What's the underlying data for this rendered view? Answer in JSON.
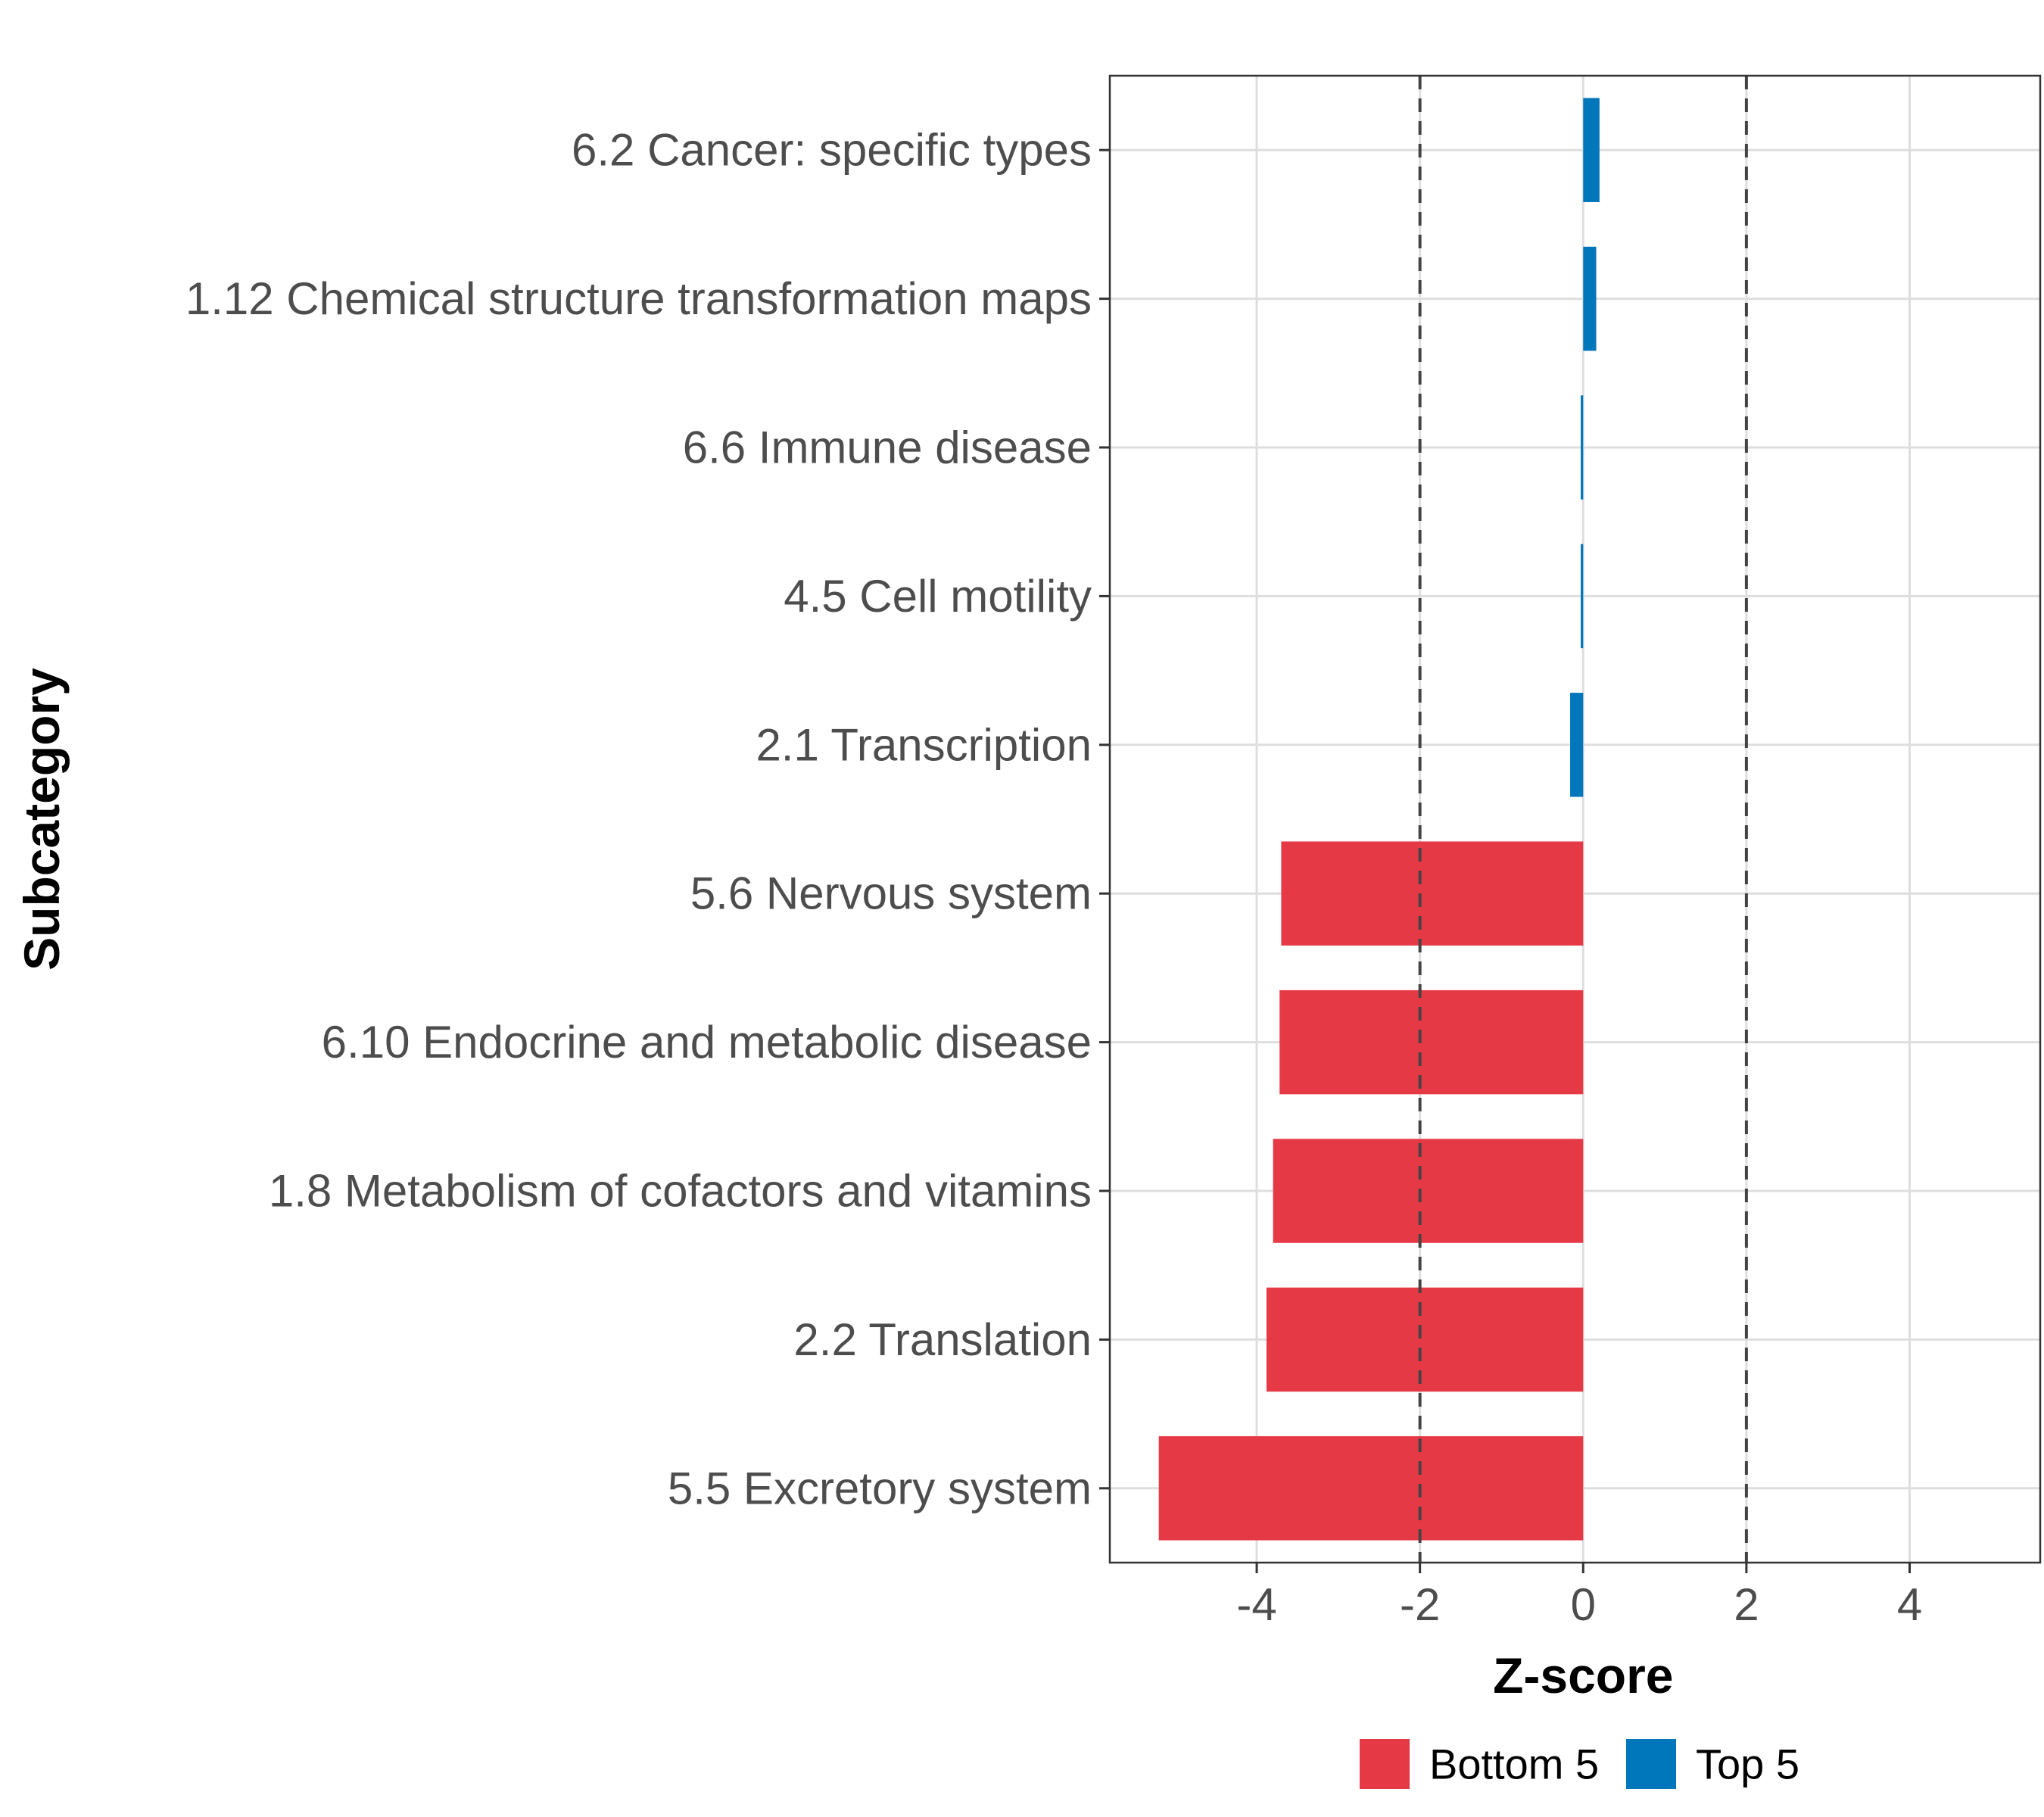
{
  "chart_data": {
    "type": "bar",
    "orientation": "horizontal",
    "title": "",
    "xlabel": "Z-score",
    "ylabel": "Subcategory",
    "xlim": [
      -5.8,
      5.6
    ],
    "xticks": [
      -4,
      -2,
      0,
      2,
      4
    ],
    "xtick_labels": [
      "-4",
      "-2",
      "0",
      "2",
      "4"
    ],
    "reference_lines": [
      -2,
      2
    ],
    "grid": true,
    "legend_position": "bottom",
    "legend": [
      {
        "name": "Bottom 5",
        "color": "#e63946"
      },
      {
        "name": "Top 5",
        "color": "#0077bb"
      }
    ],
    "categories": [
      "6.2 Cancer: specific types",
      "1.12 Chemical structure transformation maps",
      "6.6 Immune disease",
      "4.5 Cell motility",
      "2.1 Transcription",
      "5.6 Nervous system",
      "6.10 Endocrine and metabolic disease",
      "1.8 Metabolism of cofactors and vitamins",
      "2.2 Translation",
      "5.5 Excretory system"
    ],
    "values": [
      0.2,
      0.16,
      -0.03,
      -0.03,
      -0.16,
      -3.7,
      -3.72,
      -3.8,
      -3.88,
      -5.2
    ],
    "groups": [
      "Top 5",
      "Top 5",
      "Top 5",
      "Top 5",
      "Top 5",
      "Bottom 5",
      "Bottom 5",
      "Bottom 5",
      "Bottom 5",
      "Bottom 5"
    ]
  }
}
